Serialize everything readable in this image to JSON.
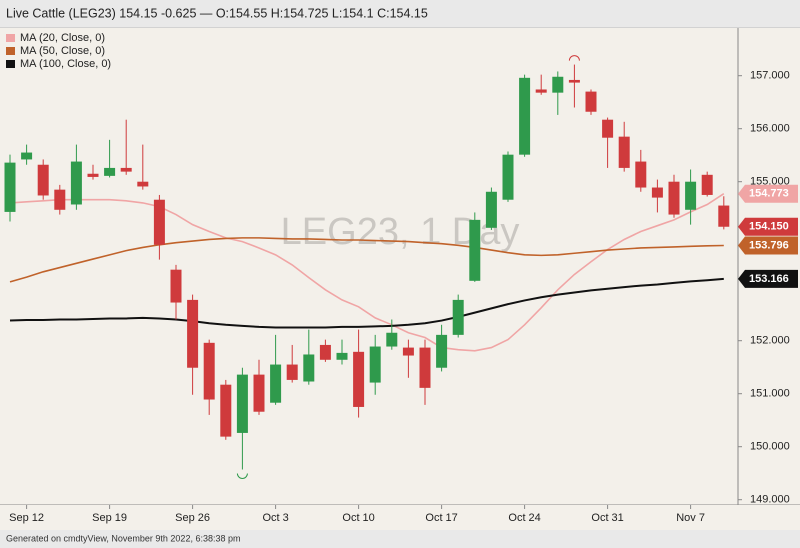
{
  "chart_data": {
    "type": "candlestick",
    "title": "Live Cattle (LEG23) 154.15 -0.625 — O:154.55 H:154.725 L:154.1 C:154.15",
    "watermark": "LEG23, 1 Day",
    "footer": "Generated on cmdtyView, November 9th 2022, 6:38:38 pm",
    "legend": "top-left",
    "up_color": "#2f9a4c",
    "down_color": "#cf3a3c",
    "categories": [
      null,
      "Sep 12",
      null,
      null,
      null,
      null,
      "Sep 19",
      null,
      null,
      null,
      null,
      "Sep 26",
      null,
      null,
      null,
      null,
      "Oct 3",
      null,
      null,
      null,
      null,
      "Oct 10",
      null,
      null,
      null,
      null,
      "Oct 17",
      null,
      null,
      null,
      null,
      "Oct 24",
      null,
      null,
      null,
      null,
      "Oct 31",
      null,
      null,
      null,
      null,
      "Nov 7",
      null,
      null
    ],
    "open": [
      154.43,
      155.42,
      155.32,
      154.85,
      154.57,
      155.15,
      155.11,
      155.26,
      155.0,
      154.66,
      153.34,
      152.77,
      151.96,
      151.17,
      150.26,
      151.36,
      150.83,
      151.55,
      151.23,
      151.92,
      151.64,
      151.79,
      151.21,
      151.89,
      151.87,
      151.87,
      151.49,
      152.11,
      153.13,
      154.13,
      154.66,
      155.51,
      156.74,
      156.68,
      156.92,
      156.7,
      156.17,
      155.85,
      155.38,
      154.89,
      155.0,
      154.47,
      155.13,
      154.55
    ],
    "high": [
      155.51,
      155.7,
      155.42,
      154.94,
      155.7,
      155.32,
      155.79,
      156.17,
      155.7,
      154.75,
      153.43,
      152.87,
      152.02,
      151.26,
      151.49,
      151.64,
      152.11,
      151.92,
      152.21,
      152.02,
      152.02,
      152.21,
      152.11,
      152.4,
      152.02,
      152.02,
      152.3,
      152.87,
      154.42,
      154.89,
      155.57,
      157.02,
      157.02,
      157.08,
      157.21,
      156.74,
      156.21,
      156.13,
      155.6,
      155.04,
      155.13,
      155.23,
      155.19,
      154.725
    ],
    "low": [
      154.25,
      155.32,
      154.66,
      154.38,
      154.47,
      155.04,
      155.08,
      155.13,
      154.85,
      153.53,
      152.4,
      150.98,
      150.6,
      150.13,
      149.57,
      150.6,
      150.79,
      151.21,
      151.17,
      151.6,
      151.55,
      150.55,
      150.98,
      151.83,
      151.3,
      150.79,
      151.42,
      152.06,
      153.11,
      154.09,
      154.62,
      155.47,
      156.64,
      156.26,
      156.4,
      156.26,
      155.26,
      155.19,
      154.81,
      154.42,
      154.32,
      154.19,
      154.72,
      154.1
    ],
    "close": [
      155.36,
      155.55,
      154.74,
      154.47,
      155.38,
      155.09,
      155.26,
      155.19,
      154.91,
      153.81,
      152.72,
      151.49,
      150.89,
      150.19,
      151.36,
      150.66,
      151.55,
      151.26,
      151.74,
      151.64,
      151.77,
      150.75,
      151.89,
      152.15,
      151.72,
      151.11,
      152.11,
      152.77,
      154.28,
      154.81,
      155.51,
      156.96,
      156.68,
      156.98,
      156.87,
      156.32,
      155.83,
      155.26,
      154.89,
      154.7,
      154.38,
      155.0,
      154.75,
      154.15
    ],
    "close_label": "154.150",
    "moving_averages": [
      {
        "name": "MA (20, Close, 0)",
        "color": "#f0a5a5",
        "last_label": "154.773",
        "values": [
          154.6,
          154.62,
          154.64,
          154.66,
          154.66,
          154.66,
          154.66,
          154.64,
          154.6,
          154.53,
          154.38,
          154.19,
          154.06,
          153.94,
          153.87,
          153.75,
          153.62,
          153.43,
          153.19,
          152.96,
          152.77,
          152.64,
          152.43,
          152.3,
          152.15,
          152.06,
          151.87,
          151.83,
          151.81,
          151.87,
          152.02,
          152.3,
          152.62,
          152.96,
          153.25,
          153.49,
          153.72,
          153.91,
          154.06,
          154.17,
          154.28,
          154.43,
          154.57,
          154.773
        ]
      },
      {
        "name": "MA (50, Close, 0)",
        "color": "#c0622a",
        "last_label": "153.796",
        "values": [
          153.11,
          153.2,
          153.3,
          153.38,
          153.46,
          153.54,
          153.62,
          153.7,
          153.76,
          153.81,
          153.85,
          153.88,
          153.91,
          153.93,
          153.94,
          153.94,
          153.93,
          153.92,
          153.92,
          153.91,
          153.9,
          153.9,
          153.89,
          153.88,
          153.87,
          153.85,
          153.83,
          153.8,
          153.76,
          153.71,
          153.66,
          153.62,
          153.61,
          153.62,
          153.65,
          153.68,
          153.71,
          153.73,
          153.75,
          153.76,
          153.77,
          153.78,
          153.79,
          153.796
        ]
      },
      {
        "name": "MA (100, Close, 0)",
        "color": "#111111",
        "last_label": "153.166",
        "values": [
          152.38,
          152.39,
          152.39,
          152.4,
          152.4,
          152.41,
          152.42,
          152.42,
          152.43,
          152.42,
          152.4,
          152.37,
          152.33,
          152.3,
          152.28,
          152.26,
          152.25,
          152.25,
          152.25,
          152.25,
          152.26,
          152.26,
          152.27,
          152.28,
          152.3,
          152.33,
          152.38,
          152.45,
          152.53,
          152.61,
          152.69,
          152.76,
          152.82,
          152.87,
          152.91,
          152.95,
          152.98,
          153.01,
          153.04,
          153.06,
          153.09,
          153.12,
          153.14,
          153.166
        ]
      }
    ],
    "ylim": [
      148.9,
      157.9
    ],
    "yticks": [
      {
        "value": 149,
        "label": "149.000"
      },
      {
        "value": 150,
        "label": "150.000"
      },
      {
        "value": 151,
        "label": "151.000"
      },
      {
        "value": 152,
        "label": "152.000"
      },
      {
        "value": 155,
        "label": "155.000"
      },
      {
        "value": 156,
        "label": "156.000"
      },
      {
        "value": 157,
        "label": "157.000"
      }
    ]
  }
}
